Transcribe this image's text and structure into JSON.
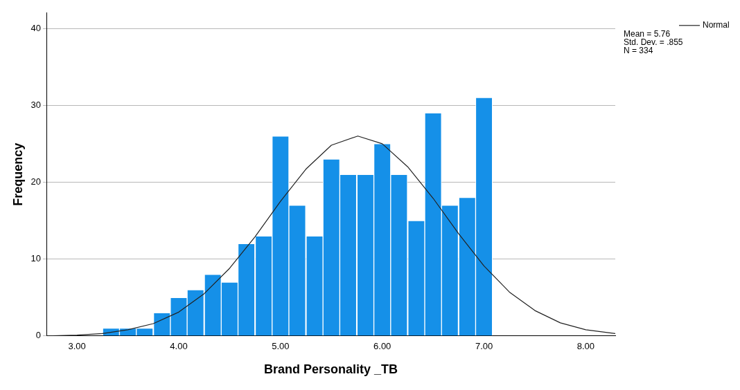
{
  "chart_data": {
    "type": "histogram",
    "xlabel": "Brand Personality _TB",
    "ylabel": "Frequency",
    "bins": [
      3.25,
      3.42,
      3.58,
      3.75,
      3.92,
      4.08,
      4.25,
      4.42,
      4.58,
      4.75,
      4.92,
      5.08,
      5.25,
      5.42,
      5.58,
      5.75,
      5.92,
      6.08,
      6.25,
      6.42,
      6.58,
      6.75,
      6.92,
      7.08
    ],
    "values": [
      1,
      1,
      1,
      3,
      5,
      6,
      8,
      7,
      12,
      13,
      26,
      17,
      13,
      23,
      21,
      21,
      25,
      21,
      15,
      29,
      17,
      18,
      31
    ],
    "color": "#1590e8",
    "series": [
      {
        "type": "line",
        "name": "Normal",
        "color": "#222222",
        "x": [
          2.7,
          3.0,
          3.25,
          3.5,
          3.75,
          4.0,
          4.25,
          4.5,
          4.75,
          5.0,
          5.25,
          5.5,
          5.76,
          6.0,
          6.25,
          6.5,
          6.75,
          7.0,
          7.25,
          7.5,
          7.75,
          8.0,
          8.29
        ],
        "values": [
          0.0,
          0.1,
          0.3,
          0.8,
          1.6,
          3.1,
          5.5,
          8.8,
          12.9,
          17.5,
          21.7,
          24.8,
          26.0,
          25.0,
          22.0,
          17.9,
          13.3,
          9.1,
          5.7,
          3.3,
          1.7,
          0.8,
          0.3
        ]
      }
    ],
    "annotations": [
      "Mean = 5.76",
      "Std. Dev. = .855",
      "N = 334"
    ],
    "xlim": [
      2.7,
      8.29
    ],
    "xticks": [
      {
        "value": 3,
        "label": "3.00"
      },
      {
        "value": 4,
        "label": "4.00"
      },
      {
        "value": 5,
        "label": "5.00"
      },
      {
        "value": 6,
        "label": "6.00"
      },
      {
        "value": 7,
        "label": "7.00"
      },
      {
        "value": 8,
        "label": "8.00"
      }
    ],
    "ylim": [
      0,
      42
    ],
    "yticks": [
      0,
      10,
      20,
      30,
      40
    ],
    "grid": "y",
    "legend": "top right",
    "marker": "none"
  }
}
